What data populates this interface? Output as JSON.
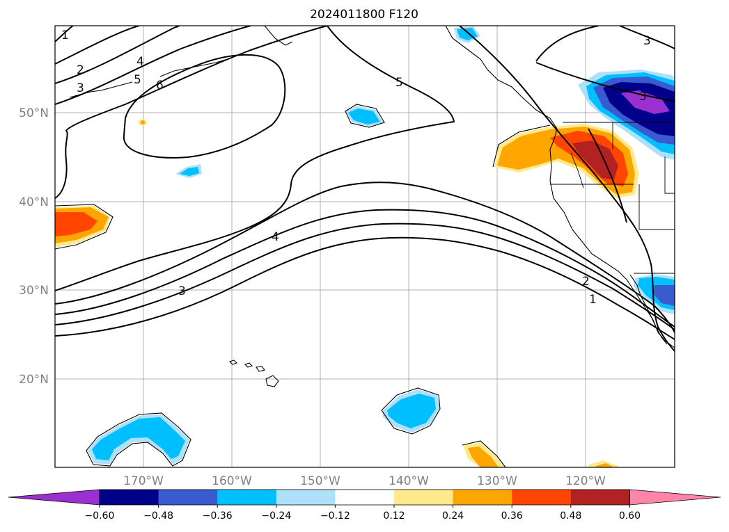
{
  "title": "2024011800 F120",
  "lat_labels": [
    "50°N",
    "40°N",
    "30°N",
    "20°N"
  ],
  "lon_labels": [
    "170°W",
    "160°W",
    "150°W",
    "140°W",
    "130°W",
    "120°W"
  ],
  "contour_labels": [
    "1",
    "2",
    "3",
    "4",
    "5",
    "6",
    "5",
    "4",
    "3",
    "2",
    "1",
    "3",
    "3"
  ],
  "colorbar": {
    "ticks": [
      "−0.60",
      "−0.48",
      "−0.36",
      "−0.24",
      "−0.12",
      "0.12",
      "0.24",
      "0.36",
      "0.48",
      "0.60"
    ],
    "colors": [
      "#9b30d0",
      "#00008b",
      "#3a5bd0",
      "#00bfff",
      "#aee0fa",
      "#ffffff",
      "#ffe98a",
      "#ffa500",
      "#ff4500",
      "#b22222",
      "#ff85a8"
    ]
  },
  "colors": {
    "contour": "#000000",
    "grid": "#b0b0b0",
    "label": "#808080"
  }
}
